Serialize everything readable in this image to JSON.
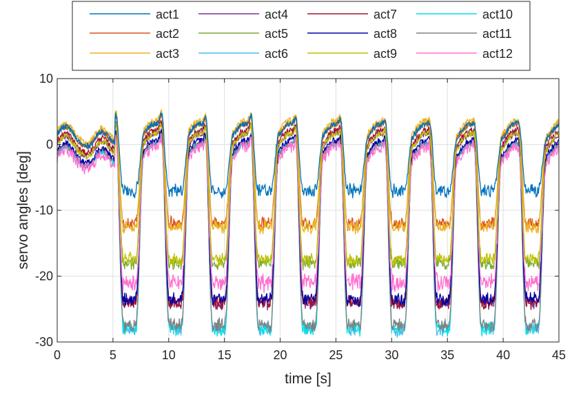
{
  "chart_data": {
    "type": "line",
    "title": "",
    "xlabel": "time [s]",
    "ylabel": "servo angles [deg]",
    "xlim": [
      0,
      45
    ],
    "ylim": [
      -30,
      10
    ],
    "xticks": [
      0,
      5,
      10,
      15,
      20,
      25,
      30,
      35,
      40,
      45
    ],
    "yticks": [
      -30,
      -20,
      -10,
      0,
      10
    ],
    "ytick_labels": [
      "-30",
      "-20",
      "-10",
      "0",
      "10"
    ],
    "grid": true,
    "legend_position": "top",
    "dip_centers_s": [
      6.5,
      10.6,
      14.5,
      18.6,
      22.6,
      26.6,
      30.6,
      34.6,
      38.6,
      42.6
    ],
    "series": [
      {
        "name": "act1",
        "color": "#0072BD",
        "baseline": 1.5,
        "dip_min": -7,
        "sample_points": [
          [
            0,
            2.5
          ],
          [
            3,
            0.5
          ],
          [
            6.5,
            -7
          ],
          [
            8,
            0
          ],
          [
            10.6,
            -6.5
          ],
          [
            12,
            1.5
          ],
          [
            14.5,
            -7
          ],
          [
            18.6,
            -7.5
          ],
          [
            22.6,
            -7
          ],
          [
            26.6,
            -6
          ],
          [
            30.6,
            -6.5
          ],
          [
            34.6,
            -7
          ],
          [
            38.6,
            -6.5
          ],
          [
            42.6,
            -7
          ],
          [
            45,
            2
          ]
        ]
      },
      {
        "name": "act2",
        "color": "#D95319",
        "baseline": 1.5,
        "dip_min": -12,
        "sample_points": [
          [
            0,
            1.5
          ],
          [
            6.5,
            -12
          ],
          [
            10.6,
            -11.5
          ],
          [
            14.5,
            -12
          ],
          [
            18.6,
            -12
          ],
          [
            22.6,
            -12
          ],
          [
            26.6,
            -12
          ],
          [
            30.6,
            -12
          ],
          [
            34.6,
            -12
          ],
          [
            38.6,
            -11.5
          ],
          [
            42.6,
            -12
          ],
          [
            45,
            2
          ]
        ]
      },
      {
        "name": "act3",
        "color": "#EDB120",
        "baseline": 2,
        "dip_min": -12.5,
        "sample_points": [
          [
            0,
            2
          ],
          [
            6.5,
            -12.5
          ],
          [
            10.6,
            -12.5
          ],
          [
            14.5,
            -12.5
          ],
          [
            18.6,
            -12.5
          ],
          [
            22.6,
            -12.5
          ],
          [
            26.6,
            -12.5
          ],
          [
            30.6,
            -12.5
          ],
          [
            34.6,
            -12.5
          ],
          [
            38.6,
            -12.5
          ],
          [
            42.6,
            -12.5
          ],
          [
            45,
            2.5
          ]
        ]
      },
      {
        "name": "act4",
        "color": "#7E2F8E",
        "baseline": 0,
        "dip_min": -24,
        "sample_points": [
          [
            0,
            0
          ],
          [
            6.5,
            -24
          ],
          [
            10.6,
            -24
          ],
          [
            14.5,
            -24
          ],
          [
            18.6,
            -24
          ],
          [
            22.6,
            -24
          ],
          [
            26.6,
            -24
          ],
          [
            30.6,
            -24
          ],
          [
            34.6,
            -24
          ],
          [
            38.6,
            -24
          ],
          [
            42.6,
            -24
          ],
          [
            45,
            0.5
          ]
        ]
      },
      {
        "name": "act5",
        "color": "#77AC30",
        "baseline": 1.5,
        "dip_min": -18,
        "sample_points": [
          [
            0,
            1.5
          ],
          [
            6.5,
            -18
          ],
          [
            10.6,
            -18
          ],
          [
            14.5,
            -18
          ],
          [
            18.6,
            -18
          ],
          [
            22.6,
            -18
          ],
          [
            26.6,
            -18
          ],
          [
            30.6,
            -18
          ],
          [
            34.6,
            -18
          ],
          [
            38.6,
            -18
          ],
          [
            42.6,
            -18
          ],
          [
            45,
            2
          ]
        ]
      },
      {
        "name": "act6",
        "color": "#4DBEEE",
        "baseline": -1.5,
        "dip_min": -28,
        "sample_points": [
          [
            0,
            -2
          ],
          [
            6.5,
            -28
          ],
          [
            10.6,
            -28
          ],
          [
            14.5,
            -28
          ],
          [
            18.6,
            -28.5
          ],
          [
            22.6,
            -28
          ],
          [
            26.6,
            -28.5
          ],
          [
            30.6,
            -28
          ],
          [
            34.6,
            -26
          ],
          [
            38.6,
            -28
          ],
          [
            42.6,
            -28
          ],
          [
            45,
            -1
          ]
        ]
      },
      {
        "name": "act7",
        "color": "#A2142F",
        "baseline": 0.5,
        "dip_min": -24,
        "sample_points": [
          [
            0,
            0.5
          ],
          [
            6.5,
            -24
          ],
          [
            10.6,
            -24
          ],
          [
            14.5,
            -24
          ],
          [
            18.6,
            -24
          ],
          [
            22.6,
            -24
          ],
          [
            26.6,
            -24
          ],
          [
            30.6,
            -24
          ],
          [
            34.6,
            -24
          ],
          [
            38.6,
            -24
          ],
          [
            42.6,
            -24
          ],
          [
            45,
            1
          ]
        ]
      },
      {
        "name": "act8",
        "color": "#0000A6",
        "baseline": -1,
        "dip_min": -23.5,
        "sample_points": [
          [
            0,
            -1
          ],
          [
            6.5,
            -23.5
          ],
          [
            10.6,
            -23.5
          ],
          [
            14.5,
            -23.5
          ],
          [
            18.6,
            -23.5
          ],
          [
            22.6,
            -23.5
          ],
          [
            26.6,
            -23.5
          ],
          [
            30.6,
            -23.5
          ],
          [
            34.6,
            -23.5
          ],
          [
            38.6,
            -23.5
          ],
          [
            42.6,
            -23.5
          ],
          [
            45,
            -0.5
          ]
        ]
      },
      {
        "name": "act9",
        "color": "#C0C000",
        "baseline": 0,
        "dip_min": -17.5,
        "sample_points": [
          [
            0,
            0
          ],
          [
            6.5,
            -17.5
          ],
          [
            10.6,
            -17.5
          ],
          [
            14.5,
            -17.5
          ],
          [
            18.6,
            -17.5
          ],
          [
            22.6,
            -17.5
          ],
          [
            26.6,
            -17.5
          ],
          [
            30.6,
            -17.5
          ],
          [
            34.6,
            -17.5
          ],
          [
            38.6,
            -17.5
          ],
          [
            42.6,
            -17.5
          ],
          [
            45,
            0.5
          ]
        ]
      },
      {
        "name": "act10",
        "color": "#00E0E8",
        "baseline": -1.5,
        "dip_min": -28,
        "sample_points": [
          [
            0,
            -1.5
          ],
          [
            6.5,
            -28
          ],
          [
            10.6,
            -28
          ],
          [
            14.5,
            -28
          ],
          [
            18.6,
            -28.5
          ],
          [
            22.6,
            -28
          ],
          [
            26.6,
            -28.5
          ],
          [
            30.6,
            -28
          ],
          [
            34.6,
            -26
          ],
          [
            38.6,
            -28
          ],
          [
            42.6,
            -28
          ],
          [
            45,
            -1
          ]
        ]
      },
      {
        "name": "act11",
        "color": "#808080",
        "baseline": -1.5,
        "dip_min": -27.5,
        "sample_points": [
          [
            0,
            -1.5
          ],
          [
            6.5,
            -27.5
          ],
          [
            10.6,
            -27.5
          ],
          [
            14.5,
            -27.5
          ],
          [
            18.6,
            -28.5
          ],
          [
            22.6,
            -27.5
          ],
          [
            26.6,
            -28.5
          ],
          [
            30.6,
            -27.5
          ],
          [
            34.6,
            -26
          ],
          [
            38.6,
            -27.5
          ],
          [
            42.6,
            -27.5
          ],
          [
            45,
            -1
          ]
        ]
      },
      {
        "name": "act12",
        "color": "#FF70D0",
        "baseline": -2,
        "dip_min": -21,
        "sample_points": [
          [
            0,
            -2
          ],
          [
            6.5,
            -21
          ],
          [
            10.6,
            -21
          ],
          [
            14.5,
            -21
          ],
          [
            18.6,
            -21
          ],
          [
            22.6,
            -21
          ],
          [
            26.6,
            -21
          ],
          [
            30.6,
            -21
          ],
          [
            34.6,
            -21
          ],
          [
            38.6,
            -21
          ],
          [
            42.6,
            -21
          ],
          [
            45,
            -1.5
          ]
        ]
      }
    ]
  }
}
